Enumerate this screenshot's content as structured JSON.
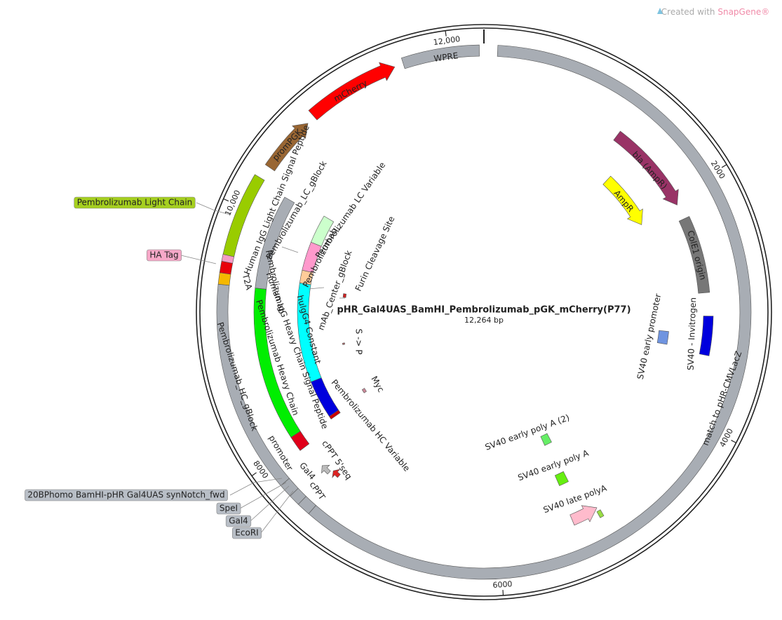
{
  "watermark": {
    "prefix": "Created with",
    "brand": "SnapGene®"
  },
  "map": {
    "title": "pHR_Gal4UAS_BamHI_Pembrolizumab_pGK_mCherry(P77)",
    "length": "12,264 bp"
  },
  "ticks": [
    "12,000",
    "2000",
    "4000",
    "6000",
    "8000",
    "10,000"
  ],
  "features": [
    "WPRE",
    "mCherry",
    "promPGK",
    "bla (AmpR)",
    "AmpR",
    "ColE1 origin",
    "SV40 - Invitrogen",
    "SV40 early promoter",
    "match to pHR-CMVLacZ",
    "SV40 early poly A (2)",
    "SV40 early poly A",
    "SV40 late polyA",
    "Pembrolizumab_HC_gBlock",
    "Pembrolizumab Heavy Chain",
    "Pembrolizumab",
    "Human IgG Heavy Chain Signal Peptide",
    "hulgG4 Constant",
    "Pembrolizumab HC Variable",
    "Pembrolizumab_LC_gBlock",
    "Pembrolizumab LC Variable",
    "Pembrolizumab_",
    "mAb_Center_gBlock",
    "Furin Cleavage Site",
    "S -> P",
    "Myc",
    "cPPT 5'seq",
    "cPPT",
    "Gal4",
    "promoter",
    "T2A",
    "Human IgG Light Chain Signal Peptide"
  ],
  "callouts": [
    "Pembrolizumab Light Chain",
    "HA Tag",
    "20BPhomo BamHI-pHR Gal4UAS synNotch_fwd",
    "SpeI",
    "Gal4",
    "EcoRI"
  ]
}
